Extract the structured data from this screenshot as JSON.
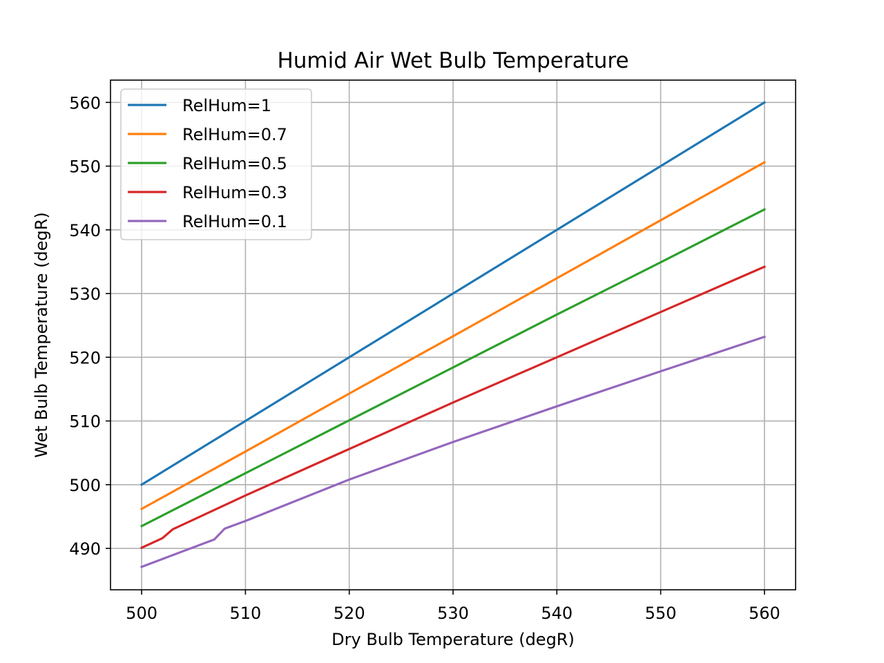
{
  "chart_data": {
    "type": "line",
    "title": "Humid Air Wet Bulb Temperature",
    "xlabel": "Dry Bulb Temperature (degR)",
    "ylabel": "Wet Bulb Temperature (degR)",
    "xlim": [
      497,
      563
    ],
    "ylim": [
      483.5,
      563.5
    ],
    "xticks": [
      500,
      510,
      520,
      530,
      540,
      550,
      560
    ],
    "yticks": [
      490,
      500,
      510,
      520,
      530,
      540,
      550,
      560
    ],
    "grid": true,
    "legend_position": "upper-left",
    "series": [
      {
        "name": "RelHum=1",
        "color": "#1f77b4",
        "points": [
          [
            500,
            500
          ],
          [
            560,
            560
          ]
        ]
      },
      {
        "name": "RelHum=0.7",
        "color": "#ff7f0e",
        "points": [
          [
            500,
            496.2
          ],
          [
            510,
            505.2
          ],
          [
            520,
            514.3
          ],
          [
            530,
            523.3
          ],
          [
            540,
            532.4
          ],
          [
            550,
            541.5
          ],
          [
            560,
            550.6
          ]
        ]
      },
      {
        "name": "RelHum=0.5",
        "color": "#2ca02c",
        "points": [
          [
            500,
            493.5
          ],
          [
            510,
            501.8
          ],
          [
            520,
            510.1
          ],
          [
            530,
            518.4
          ],
          [
            540,
            526.7
          ],
          [
            550,
            534.9
          ],
          [
            560,
            543.2
          ]
        ]
      },
      {
        "name": "RelHum=0.3",
        "color": "#d62728",
        "points": [
          [
            500,
            490.1
          ],
          [
            502,
            491.6
          ],
          [
            503,
            493.0
          ],
          [
            510,
            498.3
          ],
          [
            520,
            505.6
          ],
          [
            530,
            512.9
          ],
          [
            540,
            520.0
          ],
          [
            550,
            527.1
          ],
          [
            560,
            534.2
          ]
        ]
      },
      {
        "name": "RelHum=0.1",
        "color": "#9467bd",
        "points": [
          [
            500,
            487.1
          ],
          [
            507,
            491.4
          ],
          [
            508,
            493.1
          ],
          [
            510,
            494.3
          ],
          [
            520,
            500.8
          ],
          [
            530,
            506.7
          ],
          [
            540,
            512.3
          ],
          [
            550,
            517.8
          ],
          [
            560,
            523.2
          ]
        ]
      }
    ]
  }
}
